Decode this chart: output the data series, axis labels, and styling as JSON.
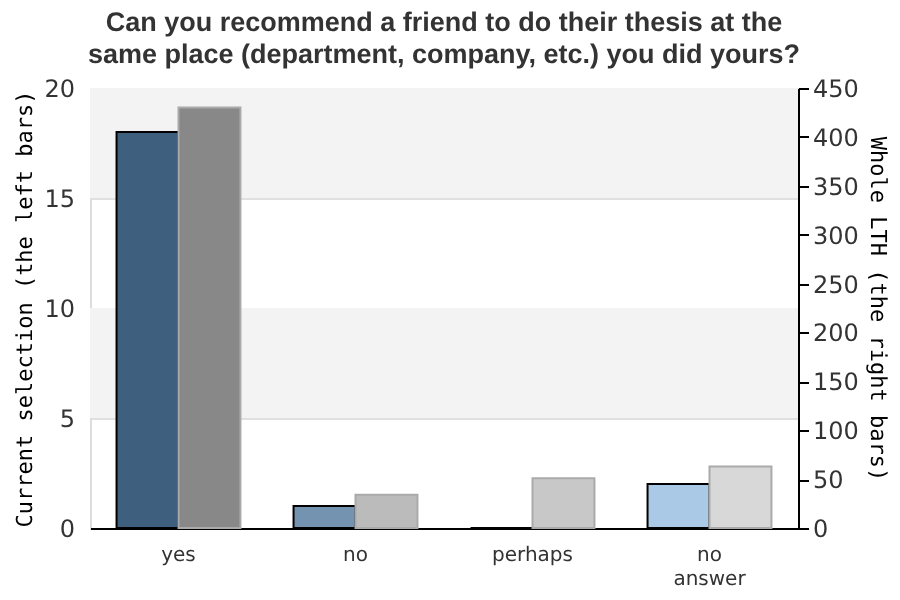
{
  "chart_data": {
    "type": "bar",
    "title": "Can you recommend a friend to do their thesis at the same place (department, company, etc.) you did yours?",
    "ylabel": "Current selection (the left bars)",
    "y2label": "Whole LTH (the right bars)",
    "categories": [
      "yes",
      "no",
      "perhaps",
      "no answer"
    ],
    "series": [
      {
        "colors": [
          "#3e5f7d",
          "#7393b1",
          "#a9c9e6",
          "#a9c9e6"
        ],
        "values": [
          18,
          1,
          0,
          2
        ]
      },
      {
        "axis": "y2",
        "colors": [
          "#888888",
          "#bbbbbb",
          "#c8c8c8",
          "#d8d8d8"
        ],
        "values": [
          430,
          34,
          51,
          63
        ]
      }
    ],
    "ylim": [
      0,
      20
    ],
    "yticks": [
      0,
      5,
      10,
      15,
      20
    ],
    "y2lim": [
      0,
      450
    ],
    "y2ticks": [
      0,
      50,
      100,
      150,
      200,
      250,
      300,
      350,
      400,
      450
    ],
    "bands": [
      {
        "axis": "y",
        "from": 5,
        "to": 10,
        "color": "#f3f3f3"
      },
      {
        "axis": "y",
        "from": 15,
        "to": 20,
        "color": "#f3f3f3"
      }
    ],
    "grid": "y"
  }
}
